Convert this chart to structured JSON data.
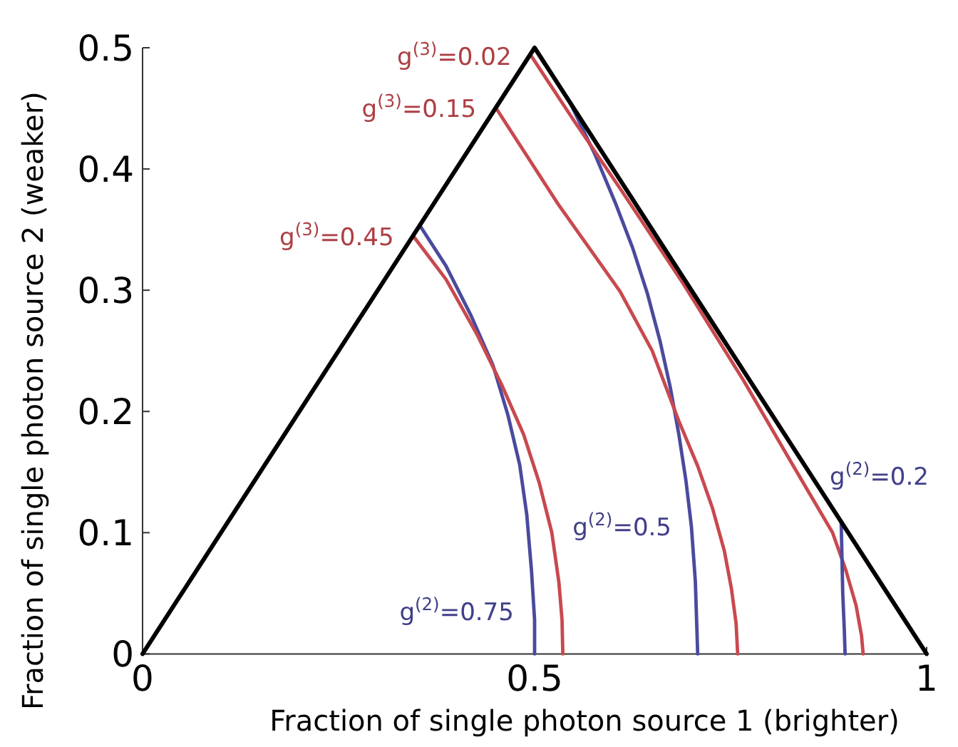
{
  "chart_data": {
    "type": "line",
    "xlabel": "Fraction of single photon source 1 (brighter)",
    "ylabel": "Fraction of single photon source 2 (weaker)",
    "xlim": [
      0,
      1
    ],
    "xticks": [
      0,
      0.5,
      1
    ],
    "ylim": [
      0,
      0.5
    ],
    "yticks": [
      0,
      0.1,
      0.2,
      0.3,
      0.4,
      0.5
    ],
    "grid": false,
    "marker": "none",
    "line_style": "solid",
    "series": [
      {
        "color": "#4a4a9e",
        "x": [
          0.354,
          0.387,
          0.419,
          0.447,
          0.466,
          0.481,
          0.49,
          0.496,
          0.5,
          0.5
        ],
        "values": [
          0.353,
          0.32,
          0.279,
          0.238,
          0.197,
          0.156,
          0.115,
          0.069,
          0.028,
          0
        ]
      },
      {
        "color": "#c8494f",
        "x": [
          0.346,
          0.387,
          0.427,
          0.458,
          0.486,
          0.506,
          0.522,
          0.531,
          0.535,
          0.536
        ],
        "values": [
          0.344,
          0.309,
          0.263,
          0.222,
          0.181,
          0.141,
          0.1,
          0.059,
          0.028,
          0
        ]
      },
      {
        "color": "#4a4a9e",
        "x": [
          0.545,
          0.577,
          0.603,
          0.625,
          0.644,
          0.66,
          0.673,
          0.684,
          0.693,
          0.7,
          0.705,
          0.708
        ],
        "values": [
          0.455,
          0.412,
          0.372,
          0.335,
          0.297,
          0.258,
          0.22,
          0.181,
          0.143,
          0.105,
          0.06,
          0
        ]
      },
      {
        "color": "#c8494f",
        "x": [
          0.451,
          0.53,
          0.609,
          0.65,
          0.684,
          0.708,
          0.727,
          0.742,
          0.751,
          0.757,
          0.759
        ],
        "values": [
          0.45,
          0.371,
          0.299,
          0.25,
          0.192,
          0.155,
          0.12,
          0.085,
          0.054,
          0.025,
          0
        ]
      },
      {
        "color": "#c8494f",
        "x": [
          0.496,
          0.55,
          0.61,
          0.69,
          0.767,
          0.83,
          0.88,
          0.897,
          0.91,
          0.917,
          0.919
        ],
        "values": [
          0.493,
          0.44,
          0.383,
          0.305,
          0.225,
          0.155,
          0.1,
          0.069,
          0.04,
          0.015,
          0
        ]
      },
      {
        "color": "#4a4a9e",
        "x": [
          0.891,
          0.892,
          0.893,
          0.895,
          0.896
        ],
        "values": [
          0.109,
          0.08,
          0.05,
          0.02,
          0
        ]
      },
      {
        "color": "#000000",
        "x": [
          0,
          0.5,
          1
        ],
        "values": [
          0,
          0.5,
          0
        ]
      }
    ],
    "annotations": [
      {
        "text": "g$^{(3)}$=0.02",
        "x": 0.496,
        "y": 0.493
      },
      {
        "text": "g$^{(3)}$=0.15",
        "x": 0.451,
        "y": 0.45
      },
      {
        "text": "g$^{(3)}$=0.45",
        "x": 0.346,
        "y": 0.344
      },
      {
        "text": "g$^{(2)}$=0.75",
        "x": 0.499,
        "y": 0.035
      },
      {
        "text": "g$^{(2)}$=0.5",
        "x": 0.7,
        "y": 0.105
      },
      {
        "text": "g$^{(2)}$=0.2",
        "x": 0.891,
        "y": 0.109
      }
    ]
  }
}
